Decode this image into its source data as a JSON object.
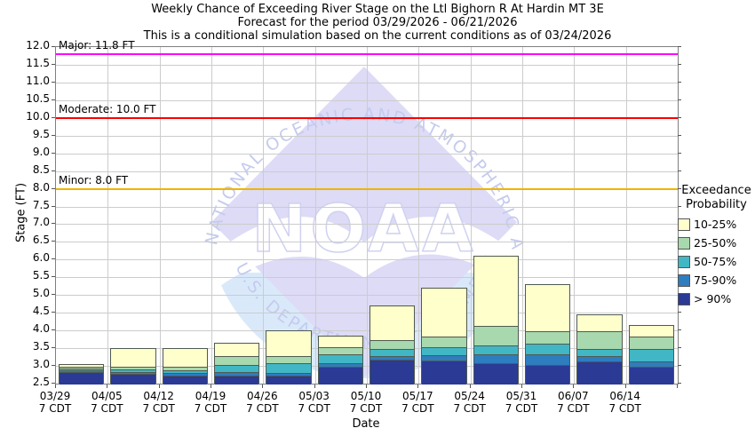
{
  "title": {
    "line1": "Weekly Chance of Exceeding River Stage on the Ltl Bighorn R At Hardin MT 3E",
    "line2": "Forecast for the period 03/29/2026 - 06/21/2026",
    "line3": "This is a conditional simulation based on the current conditions as of 03/24/2026"
  },
  "axes": {
    "y_label": "Stage (FT)",
    "x_label": "Date",
    "x_sub_label": "7 CDT"
  },
  "thresholds": [
    {
      "name": "major",
      "label": "Major: 11.8 FT",
      "value": 11.8,
      "color": "#ff00ff"
    },
    {
      "name": "moderate",
      "label": "Moderate: 10.0 FT",
      "value": 10.0,
      "color": "#ff0000"
    },
    {
      "name": "minor",
      "label": "Minor: 8.0 FT",
      "value": 8.0,
      "color": "#f0b400"
    }
  ],
  "legend": {
    "title_line1": "Exceedance",
    "title_line2": "Probability",
    "items": [
      {
        "label": "10-25%",
        "color": "#ffffcc"
      },
      {
        "label": "25-50%",
        "color": "#a8d8ad"
      },
      {
        "label": "50-75%",
        "color": "#41b7c5"
      },
      {
        "label": "75-90%",
        "color": "#2e7dbe"
      },
      {
        "label": "> 90%",
        "color": "#2b3a94"
      }
    ]
  },
  "watermark": {
    "center_text": "NOAA",
    "arc_top_text": "NATIONAL OCEANIC AND ATMOSPHERIC ADMINISTRATION",
    "arc_bottom_text": "U.S. DEPARTMENT OF COMMERCE"
  },
  "chart_data": {
    "type": "stacked-bar",
    "title": "Weekly Chance of Exceeding River Stage on the Ltl Bighorn R At Hardin MT 3E",
    "xlabel": "Date",
    "ylabel": "Stage (FT)",
    "ylim": [
      2.5,
      12.0
    ],
    "y_tick_step": 0.5,
    "grid": true,
    "legend_position": "right",
    "base_stage": 2.5,
    "segment_order": [
      "10-25%",
      "25-50%",
      "50-75%",
      "75-90%",
      "> 90%"
    ],
    "segment_colors": [
      "#ffffcc",
      "#a8d8ad",
      "#41b7c5",
      "#2e7dbe",
      "#2b3a94"
    ],
    "categories": [
      "03/29",
      "04/05",
      "04/12",
      "04/19",
      "04/26",
      "05/03",
      "05/10",
      "05/17",
      "05/24",
      "05/31",
      "06/07",
      "06/14"
    ],
    "category_sub": "7 CDT",
    "bars": [
      {
        "date": "03/29",
        "levels": [
          3.05,
          3.0,
          2.95,
          2.9,
          2.85
        ]
      },
      {
        "date": "04/05",
        "levels": [
          3.5,
          3.0,
          2.92,
          2.86,
          2.8
        ]
      },
      {
        "date": "04/12",
        "levels": [
          3.5,
          3.0,
          2.9,
          2.82,
          2.75
        ]
      },
      {
        "date": "04/19",
        "levels": [
          3.65,
          3.3,
          3.05,
          2.85,
          2.76
        ]
      },
      {
        "date": "04/26",
        "levels": [
          4.0,
          3.3,
          3.1,
          2.82,
          2.74
        ]
      },
      {
        "date": "05/03",
        "levels": [
          3.85,
          3.55,
          3.35,
          3.1,
          3.0
        ]
      },
      {
        "date": "05/10",
        "levels": [
          4.7,
          3.75,
          3.5,
          3.3,
          3.2
        ]
      },
      {
        "date": "05/17",
        "levels": [
          5.2,
          3.85,
          3.55,
          3.32,
          3.18
        ]
      },
      {
        "date": "05/24",
        "levels": [
          6.1,
          4.15,
          3.6,
          3.35,
          3.1
        ]
      },
      {
        "date": "05/31",
        "levels": [
          5.3,
          4.0,
          3.65,
          3.35,
          3.05
        ]
      },
      {
        "date": "06/07",
        "levels": [
          4.45,
          4.0,
          3.5,
          3.3,
          3.15
        ]
      },
      {
        "date": "06/14",
        "levels": [
          4.15,
          3.85,
          3.5,
          3.15,
          3.0
        ]
      }
    ],
    "levels_meaning": "each bar's levels are the top stage (FT) of segments in segment_order; every segment's bottom is the next level, last segment extends to base_stage"
  },
  "colors": {
    "grid": "#cccccc",
    "frame": "#7f7f7f",
    "watermark_field": "#dddbf6",
    "watermark_sea": "#d9e9fa",
    "watermark_text": "#c5cbee"
  }
}
